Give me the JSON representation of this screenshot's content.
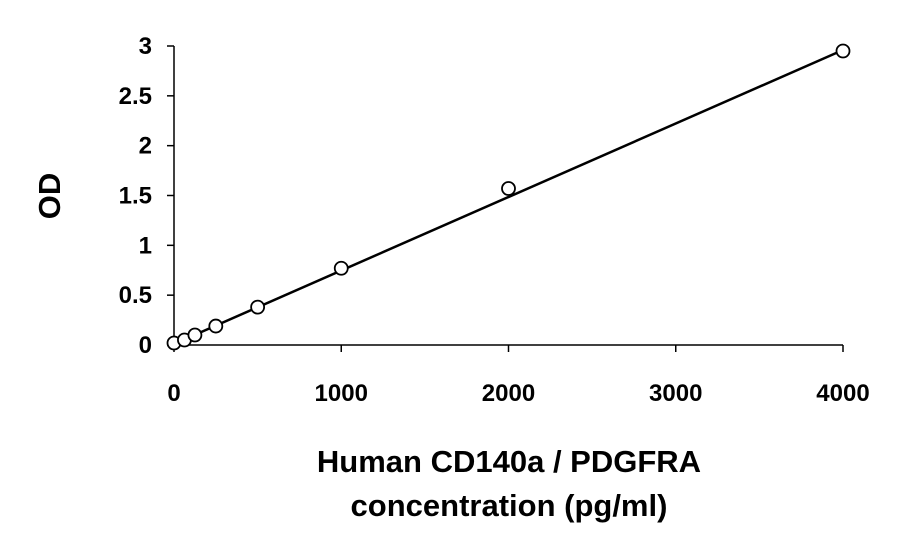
{
  "chart_data": {
    "type": "scatter",
    "title": "",
    "xlabel_lines": [
      "Human CD140a / PDGFRA",
      "concentration (pg/ml)"
    ],
    "ylabel": "OD",
    "xlim": [
      0,
      4000
    ],
    "ylim": [
      0,
      3
    ],
    "xticks": [
      "0",
      "1000",
      "2000",
      "3000",
      "4000"
    ],
    "yticks": [
      "0",
      "0.5",
      "1",
      "1.5",
      "2",
      "2.5",
      "3"
    ],
    "grid": false,
    "legend": "none",
    "series": [
      {
        "marker": "open-circle",
        "x": [
          0,
          62.5,
          125,
          250,
          500,
          1000,
          2000,
          4000
        ],
        "y": [
          0.02,
          0.05,
          0.1,
          0.19,
          0.38,
          0.77,
          1.57,
          2.95
        ]
      }
    ],
    "trendline": {
      "type": "linear",
      "x": [
        0,
        4000
      ],
      "y": [
        0.01,
        2.96
      ]
    },
    "colors": {
      "axis": "#000000",
      "marker_stroke": "#000000",
      "marker_fill": "#ffffff",
      "line": "#000000"
    }
  }
}
